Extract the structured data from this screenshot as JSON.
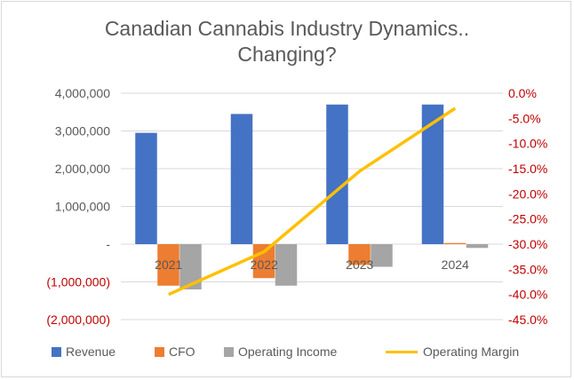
{
  "chart_data": {
    "type": "bar",
    "title_line1": "Canadian Cannabis Industry Dynamics..",
    "title_line2": "Changing?",
    "categories": [
      "2021",
      "2022",
      "2023",
      "2024"
    ],
    "series": [
      {
        "name": "Revenue",
        "kind": "bar",
        "axis": "left",
        "color": "#4472c4",
        "values": [
          2950000,
          3450000,
          3700000,
          3700000
        ]
      },
      {
        "name": "CFO",
        "kind": "bar",
        "axis": "left",
        "color": "#ed7d31",
        "values": [
          -1100000,
          -900000,
          -550000,
          30000
        ]
      },
      {
        "name": "Operating Income",
        "kind": "bar",
        "axis": "left",
        "color": "#a5a5a5",
        "values": [
          -1200000,
          -1100000,
          -600000,
          -100000
        ]
      },
      {
        "name": "Operating Margin",
        "kind": "line",
        "axis": "right",
        "color": "#ffc000",
        "values": [
          -40.0,
          -31.5,
          -15.5,
          -3.0
        ]
      }
    ],
    "y_left": {
      "ylim": [
        -2000000,
        4000000
      ],
      "ticks": [
        4000000,
        3000000,
        2000000,
        1000000,
        0,
        -1000000,
        -2000000
      ],
      "tick_labels": [
        "4,000,000",
        "3,000,000",
        "2,000,000",
        "1,000,000",
        "-",
        "(1,000,000)",
        "(2,000,000)"
      ]
    },
    "y_right": {
      "ylim": [
        -45,
        0
      ],
      "ticks": [
        0,
        -5,
        -10,
        -15,
        -20,
        -25,
        -30,
        -35,
        -40,
        -45
      ],
      "tick_labels": [
        "0.0%",
        "-5.0%",
        "-10.0%",
        "-15.0%",
        "-20.0%",
        "-25.0%",
        "-30.0%",
        "-35.0%",
        "-40.0%",
        "-45.0%"
      ]
    },
    "grid": true,
    "legend_position": "bottom"
  }
}
